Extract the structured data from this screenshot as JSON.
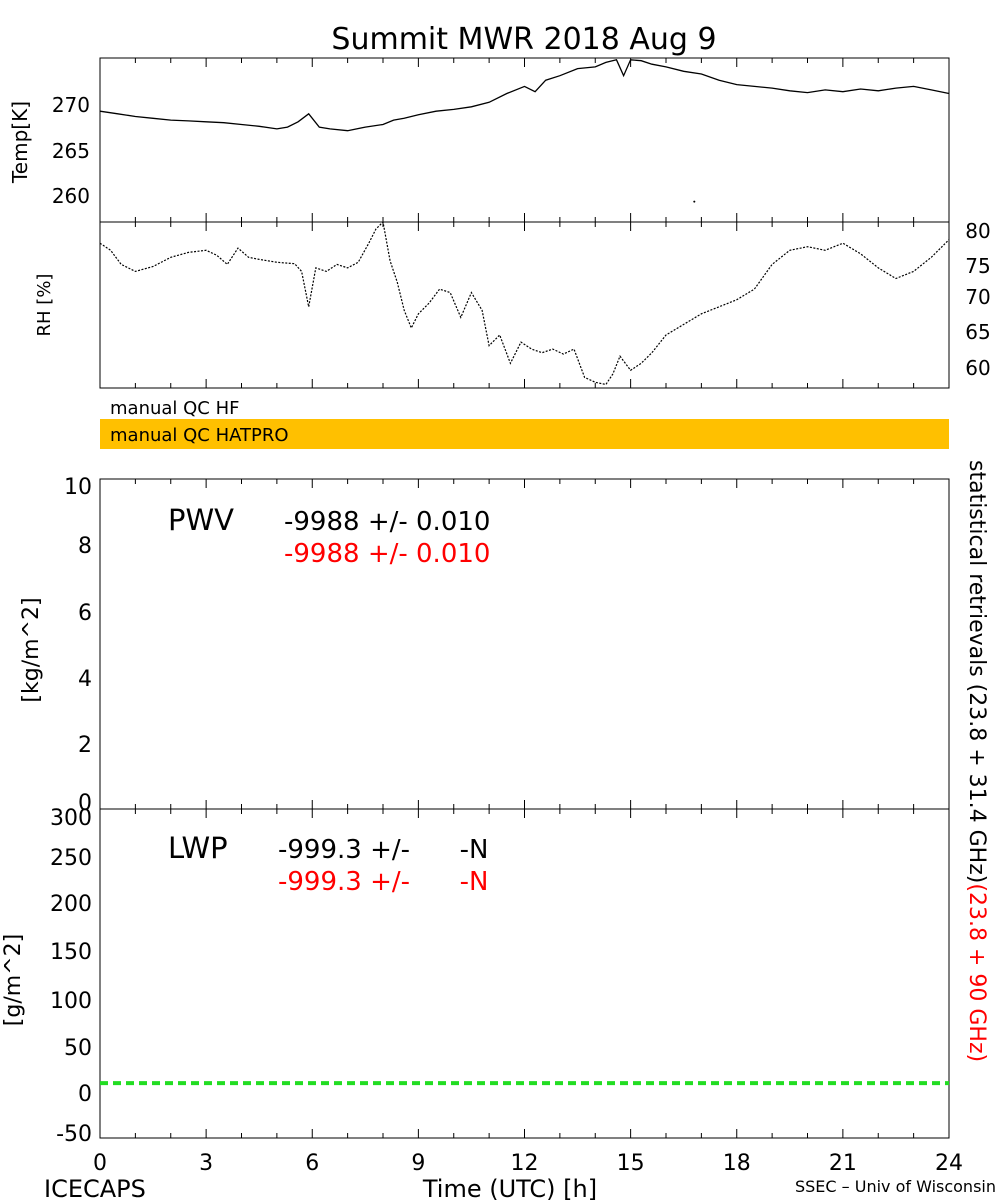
{
  "title": "Summit MWR 2018 Aug  9",
  "footer": {
    "left": "ICECAPS",
    "center": "Time (UTC) [h]",
    "right": "SSEC – Univ of Wisconsin"
  },
  "side_label": {
    "black": "statistical retrievals (23.8 + 31.4 GHz)",
    "red": "(23.8 + 90 GHz)"
  },
  "qc_bars": [
    {
      "label": "manual QC HF",
      "color": "#ffffff"
    },
    {
      "label": "manual QC HATPRO",
      "color": "#ffc000"
    }
  ],
  "colors": {
    "axis": "#000000",
    "alt_text": "#ff0000",
    "zero_line": "#22dd22",
    "qc_hatpro": "#ffc000"
  },
  "annotations": {
    "pwv": {
      "label": "PWV",
      "line1": "-9988 +/- 0.010",
      "line2": "-9988 +/- 0.010"
    },
    "lwp": {
      "label": "LWP",
      "line1": "-999.3 +/-      -N",
      "line2": "-999.3 +/-      -N"
    }
  },
  "chart_data": [
    {
      "type": "line",
      "ylabel": "Temp[K]",
      "xlim": [
        0,
        24
      ],
      "ylim": [
        256.5,
        275
      ],
      "yticks": [
        "270",
        "265",
        "260"
      ],
      "xticks": [
        "0",
        "3",
        "6",
        "9",
        "12",
        "15",
        "18",
        "21",
        "24"
      ],
      "x": [
        0,
        0.5,
        1,
        1.5,
        2,
        2.5,
        3,
        3.5,
        4,
        4.5,
        5,
        5.3,
        5.6,
        5.9,
        6.2,
        6.5,
        7,
        7.5,
        8,
        8.3,
        8.6,
        9,
        9.5,
        10,
        10.5,
        11,
        11.5,
        12,
        12.3,
        12.6,
        13,
        13.5,
        14,
        14.3,
        14.6,
        14.8,
        15,
        15.3,
        15.6,
        16,
        16.5,
        17,
        17.5,
        18,
        18.5,
        19,
        19.5,
        20,
        20.5,
        21,
        21.5,
        22,
        22.5,
        23,
        23.5,
        24
      ],
      "y": [
        269.0,
        268.7,
        268.4,
        268.2,
        268.0,
        267.9,
        267.8,
        267.7,
        267.5,
        267.3,
        267.0,
        267.2,
        267.8,
        268.7,
        267.2,
        267.0,
        266.8,
        267.2,
        267.5,
        268.0,
        268.2,
        268.6,
        269.0,
        269.2,
        269.5,
        270.0,
        271.0,
        271.8,
        271.2,
        272.5,
        273.0,
        273.8,
        274.0,
        274.5,
        274.8,
        273.0,
        274.8,
        274.7,
        274.3,
        274.0,
        273.5,
        273.2,
        272.5,
        272.0,
        271.8,
        271.6,
        271.3,
        271.1,
        271.4,
        271.2,
        271.5,
        271.3,
        271.6,
        271.8,
        271.4,
        271.0
      ],
      "outlier": {
        "x": 16.8,
        "y": 258.8
      }
    },
    {
      "type": "line",
      "ylabel": "RH [%]",
      "xlim": [
        0,
        24
      ],
      "ylim": [
        57,
        80.5
      ],
      "yticks": [
        "80",
        "75",
        "70",
        "65",
        "60"
      ],
      "x": [
        0,
        0.3,
        0.6,
        1,
        1.5,
        2,
        2.5,
        3,
        3.3,
        3.6,
        3.9,
        4.2,
        4.5,
        5,
        5.5,
        5.7,
        5.9,
        6.1,
        6.4,
        6.7,
        7,
        7.3,
        7.6,
        7.8,
        8,
        8.2,
        8.4,
        8.6,
        8.8,
        9,
        9.3,
        9.6,
        9.9,
        10.2,
        10.5,
        10.8,
        11,
        11.3,
        11.6,
        11.9,
        12.2,
        12.5,
        12.8,
        13.1,
        13.4,
        13.7,
        14,
        14.3,
        14.5,
        14.7,
        15,
        15.3,
        15.6,
        16,
        16.5,
        17,
        17.5,
        18,
        18.5,
        19,
        19.5,
        20,
        20.5,
        21,
        21.5,
        22,
        22.5,
        23,
        23.5,
        24
      ],
      "y": [
        77.5,
        76.5,
        74.5,
        73.5,
        74.2,
        75.5,
        76.2,
        76.5,
        75.8,
        74.5,
        76.8,
        75.5,
        75.2,
        74.8,
        74.6,
        73.5,
        68.5,
        74.0,
        73.5,
        74.5,
        74.0,
        74.8,
        77.5,
        79.5,
        81.0,
        75.0,
        72.0,
        68.0,
        65.5,
        67.5,
        69.0,
        71.0,
        70.5,
        67.0,
        70.5,
        68.0,
        63.0,
        64.5,
        60.5,
        63.5,
        62.5,
        62.0,
        62.5,
        61.8,
        62.5,
        58.5,
        57.8,
        57.5,
        59.0,
        61.5,
        59.5,
        60.5,
        62.0,
        64.5,
        66.0,
        67.5,
        68.5,
        69.5,
        71.0,
        74.5,
        76.5,
        77.0,
        76.5,
        77.5,
        76.0,
        74.0,
        72.5,
        73.5,
        75.5,
        78.0
      ]
    },
    {
      "type": "line",
      "ylabel": "[kg/m^2]",
      "xlim": [
        0,
        24
      ],
      "ylim": [
        0,
        10
      ],
      "yticks": [
        "10",
        "8",
        "6",
        "4",
        "2",
        "0"
      ],
      "series": []
    },
    {
      "type": "line",
      "ylabel": "[g/m^2]",
      "xlim": [
        0,
        24
      ],
      "ylim": [
        -60,
        300
      ],
      "yticks": [
        "300",
        "250",
        "200",
        "150",
        "100",
        "50",
        "0",
        "-50"
      ],
      "xticks": [
        "0",
        "3",
        "6",
        "9",
        "12",
        "15",
        "18",
        "21",
        "24"
      ],
      "reference_line": {
        "y": 0
      }
    }
  ]
}
